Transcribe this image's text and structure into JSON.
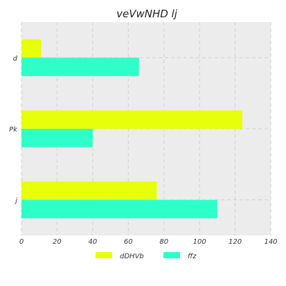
{
  "chart_data": {
    "type": "bar",
    "orientation": "horizontal",
    "title": "veVwNHD  lj",
    "categories": [
      "d",
      "Pk",
      "j"
    ],
    "series": [
      {
        "name": "dDHVb",
        "values": [
          11,
          124,
          76
        ],
        "color": "#e8ff0a"
      },
      {
        "name": "ffz",
        "values": [
          66,
          40,
          110
        ],
        "color": "#2effc8"
      }
    ],
    "xlim": [
      0,
      140
    ],
    "xticks": [
      0,
      20,
      40,
      60,
      80,
      100,
      120,
      140
    ],
    "grid": true,
    "legend_position": "bottom-center",
    "background": "#ececec"
  }
}
